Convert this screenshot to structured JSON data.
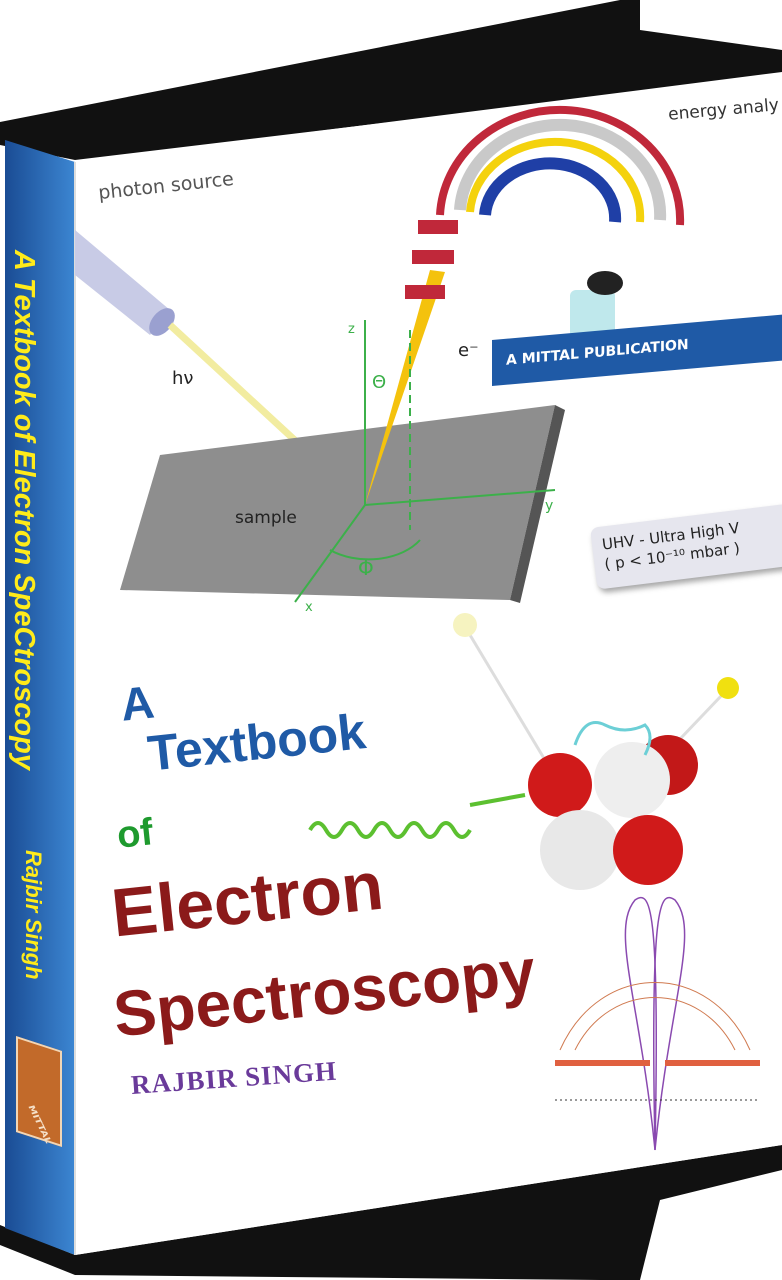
{
  "spine": {
    "title": "A Textbook of Electron SpeCtroscopy",
    "author": "Rajbir Singh",
    "logo_text": "MITTAL",
    "color": "#2a64b0",
    "text_color": "#ffeb1a"
  },
  "cover": {
    "publisher_banner": "A MITTAL PUBLICATION",
    "title_lines": [
      {
        "text": "A",
        "color": "#1f5aa6"
      },
      {
        "text": "Textbook",
        "color": "#1f5aa6"
      },
      {
        "text": "of",
        "color": "#1e9a2e"
      },
      {
        "text": "Electron",
        "color": "#8b1a1a"
      },
      {
        "text": "Spectroscopy",
        "color": "#8b1a1a"
      }
    ],
    "author": "RAJBIR SINGH",
    "illustration_labels": {
      "photon_source": "photon source",
      "energy_analyzer": "energy analy",
      "photon": "hν",
      "electron": "e⁻",
      "z_axis": "z",
      "y_axis": "y",
      "x_axis": "x",
      "theta": "Θ",
      "phi": "Φ",
      "sample": "sample"
    },
    "uhv_box": {
      "line1": "UHV - Ultra High V",
      "line2": "( p < 10⁻¹⁰ mbar )"
    }
  }
}
